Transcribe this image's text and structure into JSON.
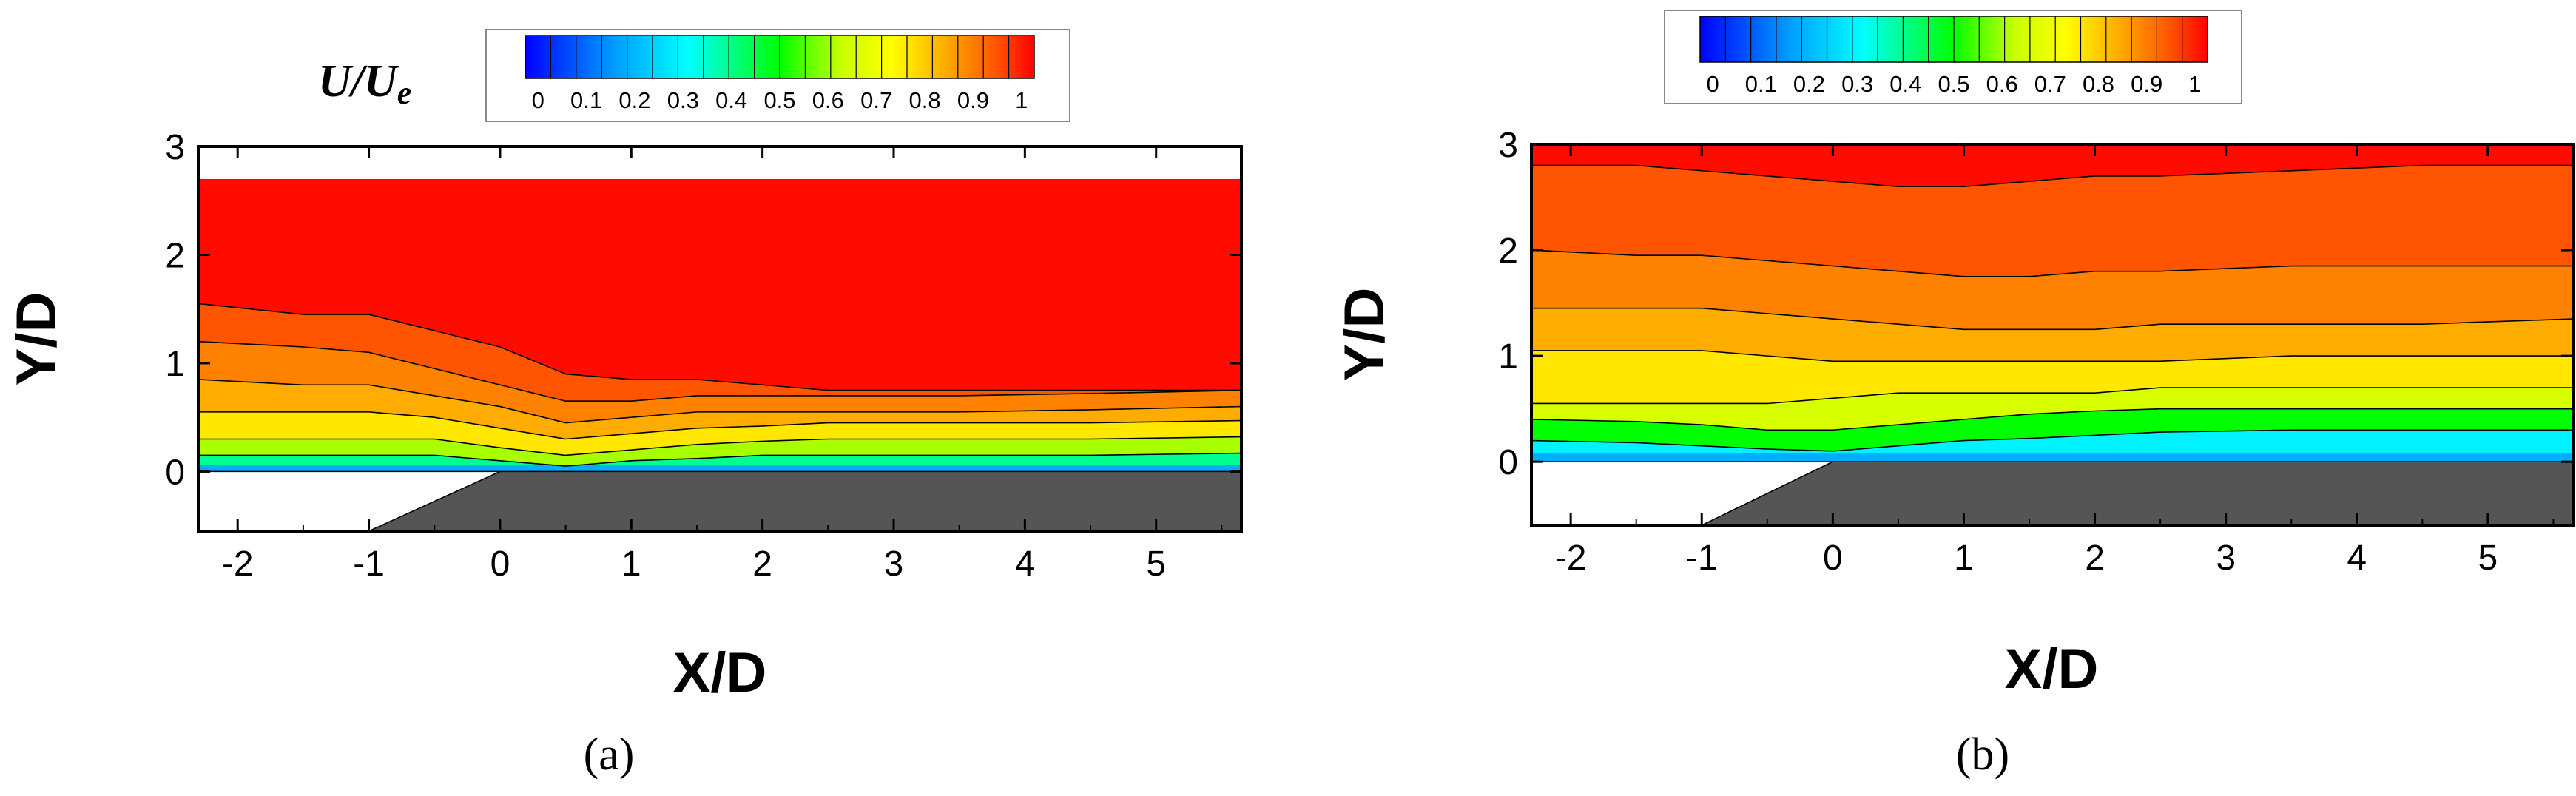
{
  "colorbar": {
    "title": "U/Ue",
    "title_main": "U/U",
    "title_sub": "e",
    "levels": 20,
    "labels": [
      "0",
      "0.1",
      "0.2",
      "0.3",
      "0.4",
      "0.5",
      "0.6",
      "0.7",
      "0.8",
      "0.9",
      "1"
    ],
    "palette": [
      "#0000ff",
      "#00a0ff",
      "#00ffff",
      "#00ff00",
      "#c8ff00",
      "#ffff00",
      "#ffa000",
      "#ff5000",
      "#ff0000"
    ]
  },
  "chart_data": [
    {
      "type": "contour",
      "panel": "a",
      "caption": "(a)",
      "xlabel": "X/D",
      "ylabel": "Y/D",
      "xlim": [
        -2.3,
        5.65
      ],
      "ylim": [
        -0.55,
        3.0
      ],
      "xticks": [
        "-2",
        "-1",
        "0",
        "1",
        "2",
        "3",
        "4",
        "5"
      ],
      "yticks": [
        "0",
        "1",
        "2",
        "3"
      ],
      "data_top_y": 2.7,
      "variable": "U/Ue",
      "range": [
        0,
        1
      ],
      "contour_levels": [
        {
          "level": 0.95,
          "y": [
            1.55,
            1.45,
            1.45,
            1.3,
            1.15,
            0.9,
            0.85,
            0.85,
            0.8,
            0.75,
            0.75,
            0.75,
            0.75
          ]
        },
        {
          "level": 0.9,
          "y": [
            1.2,
            1.15,
            1.1,
            0.95,
            0.8,
            0.65,
            0.65,
            0.7,
            0.7,
            0.7,
            0.7,
            0.72,
            0.75
          ]
        },
        {
          "level": 0.85,
          "y": [
            0.85,
            0.8,
            0.8,
            0.7,
            0.6,
            0.45,
            0.5,
            0.55,
            0.55,
            0.55,
            0.55,
            0.57,
            0.6
          ]
        },
        {
          "level": 0.8,
          "y": [
            0.55,
            0.55,
            0.55,
            0.5,
            0.4,
            0.3,
            0.35,
            0.4,
            0.42,
            0.45,
            0.45,
            0.45,
            0.47
          ]
        },
        {
          "level": 0.7,
          "y": [
            0.3,
            0.3,
            0.3,
            0.3,
            0.22,
            0.15,
            0.2,
            0.25,
            0.28,
            0.3,
            0.3,
            0.3,
            0.32
          ]
        },
        {
          "level": 0.5,
          "y": [
            0.15,
            0.15,
            0.15,
            0.15,
            0.1,
            0.05,
            0.1,
            0.12,
            0.15,
            0.15,
            0.15,
            0.15,
            0.17
          ]
        }
      ],
      "contour_x": [
        -2.3,
        -1.5,
        -1.0,
        -0.5,
        0.0,
        0.5,
        1.0,
        1.5,
        2.0,
        2.5,
        3.5,
        4.5,
        5.65
      ],
      "geometry": {
        "step_x": [
          -2.3,
          -1.0
        ],
        "ramp_top_x": 0.0,
        "floor_y": 0.0,
        "bottom_y": -0.55
      }
    },
    {
      "type": "contour",
      "panel": "b",
      "caption": "(b)",
      "xlabel": "X/D",
      "ylabel": "Y/D",
      "xlim": [
        -2.3,
        5.65
      ],
      "ylim": [
        -0.6,
        3.0
      ],
      "xticks": [
        "-2",
        "-1",
        "0",
        "1",
        "2",
        "3",
        "4",
        "5"
      ],
      "yticks": [
        "0",
        "1",
        "2",
        "3"
      ],
      "data_top_y": 3.0,
      "variable": "U/Ue",
      "range": [
        0,
        1
      ],
      "contour_levels": [
        {
          "level": 0.95,
          "y": [
            2.8,
            2.8,
            2.75,
            2.7,
            2.65,
            2.6,
            2.6,
            2.65,
            2.7,
            2.7,
            2.75,
            2.8,
            2.8
          ]
        },
        {
          "level": 0.9,
          "y": [
            2.0,
            1.95,
            1.95,
            1.9,
            1.85,
            1.8,
            1.75,
            1.75,
            1.8,
            1.8,
            1.85,
            1.85,
            1.85
          ]
        },
        {
          "level": 0.85,
          "y": [
            1.45,
            1.45,
            1.45,
            1.4,
            1.35,
            1.3,
            1.25,
            1.25,
            1.25,
            1.3,
            1.3,
            1.3,
            1.35
          ]
        },
        {
          "level": 0.8,
          "y": [
            1.05,
            1.05,
            1.05,
            1.0,
            0.95,
            0.95,
            0.95,
            0.95,
            0.95,
            0.95,
            1.0,
            1.0,
            1.0
          ]
        },
        {
          "level": 0.7,
          "y": [
            0.55,
            0.55,
            0.55,
            0.55,
            0.6,
            0.65,
            0.65,
            0.65,
            0.65,
            0.7,
            0.7,
            0.7,
            0.7
          ]
        },
        {
          "level": 0.6,
          "y": [
            0.4,
            0.38,
            0.35,
            0.3,
            0.3,
            0.35,
            0.4,
            0.45,
            0.48,
            0.5,
            0.5,
            0.5,
            0.5
          ]
        },
        {
          "level": 0.4,
          "y": [
            0.2,
            0.18,
            0.15,
            0.12,
            0.1,
            0.15,
            0.2,
            0.22,
            0.25,
            0.28,
            0.3,
            0.3,
            0.3
          ]
        }
      ],
      "contour_x": [
        -2.3,
        -1.5,
        -1.0,
        -0.5,
        0.0,
        0.5,
        1.0,
        1.5,
        2.0,
        2.5,
        3.5,
        4.5,
        5.65
      ],
      "geometry": {
        "step_x": [
          -2.3,
          -1.0
        ],
        "ramp_top_x": 0.0,
        "floor_y": 0.0,
        "bottom_y": -0.6
      }
    }
  ]
}
